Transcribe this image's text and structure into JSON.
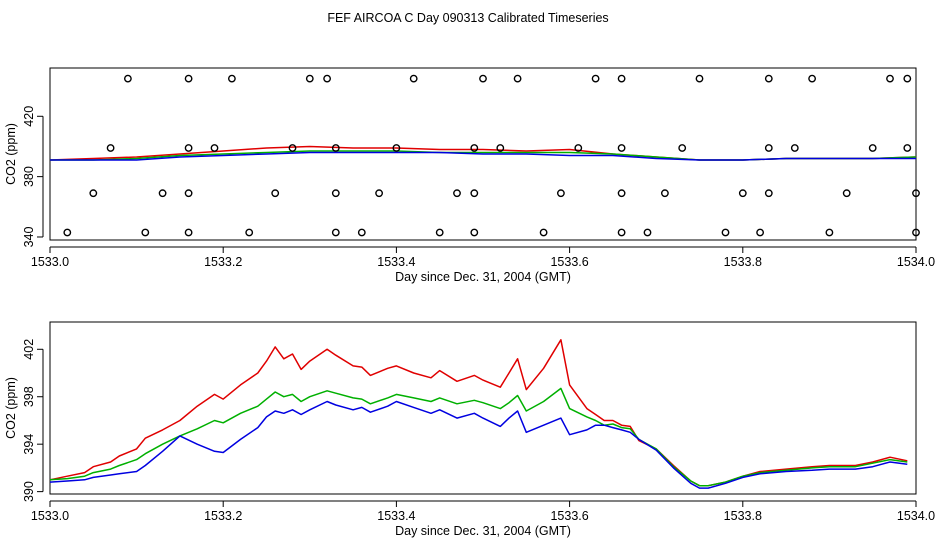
{
  "title": "FEF AIRCOA C  Day 090313  Calibrated Timeseries",
  "colors": {
    "red": "#e00000",
    "green": "#00b000",
    "blue": "#0000e0",
    "axis": "#000000"
  },
  "chart_data": [
    {
      "type": "line",
      "xlabel": "Day since Dec. 31, 2004 (GMT)",
      "ylabel": "CO2 (ppm)",
      "xlim": [
        1533.0,
        1534.0
      ],
      "ylim": [
        338,
        452
      ],
      "xticks": [
        1533.0,
        1533.2,
        1533.4,
        1533.6,
        1533.8,
        1534.0
      ],
      "xtick_labels": [
        "1533.0",
        "1533.2",
        "1533.4",
        "1533.6",
        "1533.8",
        "1534.0"
      ],
      "yticks": [
        340,
        380,
        420
      ],
      "ytick_labels": [
        "340",
        "380",
        "420"
      ],
      "series": [
        {
          "name": "red",
          "color": "#e00000",
          "x": [
            1533.0,
            1533.05,
            1533.1,
            1533.15,
            1533.2,
            1533.25,
            1533.3,
            1533.35,
            1533.4,
            1533.45,
            1533.5,
            1533.55,
            1533.6,
            1533.65,
            1533.7,
            1533.75,
            1533.8,
            1533.85,
            1533.9,
            1533.95,
            1534.0
          ],
          "y": [
            391,
            392,
            393,
            395,
            397,
            399,
            400,
            399,
            399,
            398,
            398,
            397,
            398,
            395,
            393,
            391,
            391,
            392,
            392,
            392,
            393
          ]
        },
        {
          "name": "green",
          "color": "#00b000",
          "x": [
            1533.0,
            1533.05,
            1533.1,
            1533.15,
            1533.2,
            1533.25,
            1533.3,
            1533.35,
            1533.4,
            1533.45,
            1533.5,
            1533.55,
            1533.6,
            1533.65,
            1533.7,
            1533.75,
            1533.8,
            1533.85,
            1533.9,
            1533.95,
            1534.0
          ],
          "y": [
            391,
            391,
            392,
            394,
            395,
            396,
            397,
            397,
            397,
            396,
            396,
            396,
            396,
            395,
            393,
            391,
            391,
            392,
            392,
            392,
            393
          ]
        },
        {
          "name": "blue",
          "color": "#0000e0",
          "x": [
            1533.0,
            1533.05,
            1533.1,
            1533.15,
            1533.2,
            1533.25,
            1533.3,
            1533.35,
            1533.4,
            1533.45,
            1533.5,
            1533.55,
            1533.6,
            1533.65,
            1533.7,
            1533.75,
            1533.8,
            1533.85,
            1533.9,
            1533.95,
            1534.0
          ],
          "y": [
            391,
            391,
            391,
            393,
            394,
            395,
            396,
            396,
            396,
            396,
            395,
            395,
            394,
            394,
            392,
            391,
            391,
            392,
            392,
            392,
            392
          ]
        }
      ],
      "markers": {
        "style": "open-circle",
        "x": [
          1533.09,
          1533.16,
          1533.21,
          1533.3,
          1533.32,
          1533.42,
          1533.5,
          1533.54,
          1533.63,
          1533.66,
          1533.75,
          1533.83,
          1533.88,
          1533.97,
          1533.99,
          1533.07,
          1533.16,
          1533.19,
          1533.28,
          1533.33,
          1533.4,
          1533.49,
          1533.52,
          1533.61,
          1533.66,
          1533.73,
          1533.83,
          1533.86,
          1533.95,
          1533.99,
          1533.05,
          1533.13,
          1533.16,
          1533.26,
          1533.33,
          1533.38,
          1533.47,
          1533.49,
          1533.59,
          1533.66,
          1533.71,
          1533.8,
          1533.83,
          1533.92,
          1534.0,
          1533.02,
          1533.11,
          1533.16,
          1533.23,
          1533.33,
          1533.36,
          1533.45,
          1533.49,
          1533.57,
          1533.66,
          1533.69,
          1533.78,
          1533.82,
          1533.9,
          1534.0
        ],
        "y": [
          445,
          445,
          445,
          445,
          445,
          445,
          445,
          445,
          445,
          445,
          445,
          445,
          445,
          445,
          445,
          399,
          399,
          399,
          399,
          399,
          399,
          399,
          399,
          399,
          399,
          399,
          399,
          399,
          399,
          399,
          369,
          369,
          369,
          369,
          369,
          369,
          369,
          369,
          369,
          369,
          369,
          369,
          369,
          369,
          369,
          343,
          343,
          343,
          343,
          343,
          343,
          343,
          343,
          343,
          343,
          343,
          343,
          343,
          343,
          343
        ]
      }
    },
    {
      "type": "line",
      "xlabel": "Day since Dec. 31, 2004 (GMT)",
      "ylabel": "CO2 (ppm)",
      "xlim": [
        1533.0,
        1534.0
      ],
      "ylim": [
        389.8,
        404.3
      ],
      "xticks": [
        1533.0,
        1533.2,
        1533.4,
        1533.6,
        1533.8,
        1534.0
      ],
      "xtick_labels": [
        "1533.0",
        "1533.2",
        "1533.4",
        "1533.6",
        "1533.8",
        "1534.0"
      ],
      "yticks": [
        390,
        394,
        398,
        402
      ],
      "ytick_labels": [
        "390",
        "394",
        "398",
        "402"
      ],
      "series": [
        {
          "name": "red",
          "color": "#e00000",
          "x": [
            1533.0,
            1533.02,
            1533.04,
            1533.05,
            1533.07,
            1533.08,
            1533.1,
            1533.11,
            1533.13,
            1533.15,
            1533.17,
            1533.19,
            1533.2,
            1533.22,
            1533.24,
            1533.25,
            1533.26,
            1533.27,
            1533.28,
            1533.29,
            1533.3,
            1533.32,
            1533.33,
            1533.35,
            1533.36,
            1533.37,
            1533.39,
            1533.4,
            1533.42,
            1533.44,
            1533.45,
            1533.47,
            1533.49,
            1533.5,
            1533.52,
            1533.53,
            1533.54,
            1533.55,
            1533.57,
            1533.59,
            1533.6,
            1533.62,
            1533.63,
            1533.64,
            1533.65,
            1533.66,
            1533.67,
            1533.68,
            1533.7,
            1533.72,
            1533.74,
            1533.75,
            1533.76,
            1533.78,
            1533.8,
            1533.82,
            1533.85,
            1533.88,
            1533.9,
            1533.93,
            1533.95,
            1533.97,
            1533.99
          ],
          "y": [
            391.0,
            391.3,
            391.6,
            392.1,
            392.5,
            393.0,
            393.6,
            394.5,
            395.2,
            396.0,
            397.2,
            398.2,
            397.8,
            399.0,
            400.0,
            401.0,
            402.2,
            401.2,
            401.6,
            400.3,
            401.0,
            402.0,
            401.5,
            400.6,
            400.5,
            399.8,
            400.4,
            400.6,
            400.0,
            399.6,
            400.2,
            399.3,
            399.8,
            399.4,
            398.8,
            400.0,
            401.2,
            398.6,
            400.4,
            402.8,
            399.0,
            397.0,
            396.5,
            396.0,
            396.0,
            395.6,
            395.5,
            394.3,
            393.6,
            392.2,
            390.9,
            390.5,
            390.5,
            390.8,
            391.3,
            391.7,
            391.9,
            392.1,
            392.2,
            392.2,
            392.5,
            392.9,
            392.6
          ]
        },
        {
          "name": "green",
          "color": "#00b000",
          "x": [
            1533.0,
            1533.02,
            1533.04,
            1533.05,
            1533.07,
            1533.08,
            1533.1,
            1533.11,
            1533.13,
            1533.15,
            1533.17,
            1533.19,
            1533.2,
            1533.22,
            1533.24,
            1533.25,
            1533.26,
            1533.27,
            1533.28,
            1533.29,
            1533.3,
            1533.32,
            1533.33,
            1533.35,
            1533.36,
            1533.37,
            1533.39,
            1533.4,
            1533.42,
            1533.44,
            1533.45,
            1533.47,
            1533.49,
            1533.5,
            1533.52,
            1533.53,
            1533.54,
            1533.55,
            1533.57,
            1533.59,
            1533.6,
            1533.62,
            1533.63,
            1533.64,
            1533.65,
            1533.66,
            1533.67,
            1533.68,
            1533.7,
            1533.72,
            1533.74,
            1533.75,
            1533.76,
            1533.78,
            1533.8,
            1533.82,
            1533.85,
            1533.88,
            1533.9,
            1533.93,
            1533.95,
            1533.97,
            1533.99
          ],
          "y": [
            391.0,
            391.1,
            391.3,
            391.6,
            391.9,
            392.2,
            392.7,
            393.2,
            394.0,
            394.7,
            395.3,
            396.0,
            395.8,
            396.6,
            397.2,
            397.8,
            398.4,
            398.0,
            398.2,
            397.6,
            398.0,
            398.5,
            398.3,
            397.9,
            397.8,
            397.4,
            397.9,
            398.2,
            397.9,
            397.6,
            397.9,
            397.4,
            397.7,
            397.5,
            397.0,
            397.5,
            398.1,
            396.8,
            397.6,
            398.7,
            397.0,
            396.3,
            396.0,
            395.6,
            395.7,
            395.4,
            395.3,
            394.4,
            393.6,
            392.1,
            390.9,
            390.5,
            390.5,
            390.8,
            391.3,
            391.6,
            391.8,
            392.0,
            392.1,
            392.1,
            392.4,
            392.7,
            392.5
          ]
        },
        {
          "name": "blue",
          "color": "#0000e0",
          "x": [
            1533.0,
            1533.02,
            1533.04,
            1533.05,
            1533.07,
            1533.08,
            1533.1,
            1533.11,
            1533.13,
            1533.15,
            1533.17,
            1533.19,
            1533.2,
            1533.22,
            1533.24,
            1533.25,
            1533.26,
            1533.27,
            1533.28,
            1533.29,
            1533.3,
            1533.32,
            1533.33,
            1533.35,
            1533.36,
            1533.37,
            1533.39,
            1533.4,
            1533.42,
            1533.44,
            1533.45,
            1533.47,
            1533.49,
            1533.5,
            1533.52,
            1533.53,
            1533.54,
            1533.55,
            1533.57,
            1533.59,
            1533.6,
            1533.62,
            1533.63,
            1533.64,
            1533.65,
            1533.66,
            1533.67,
            1533.68,
            1533.7,
            1533.72,
            1533.74,
            1533.75,
            1533.76,
            1533.78,
            1533.8,
            1533.82,
            1533.85,
            1533.88,
            1533.9,
            1533.93,
            1533.95,
            1533.97,
            1533.99
          ],
          "y": [
            390.8,
            390.9,
            391.0,
            391.2,
            391.4,
            391.5,
            391.7,
            392.2,
            393.4,
            394.7,
            394.0,
            393.4,
            393.3,
            394.4,
            395.4,
            396.3,
            396.8,
            396.6,
            396.9,
            396.5,
            396.9,
            397.6,
            397.3,
            396.9,
            397.1,
            396.7,
            397.2,
            397.6,
            397.1,
            396.6,
            396.9,
            396.2,
            396.6,
            396.2,
            395.5,
            396.2,
            396.8,
            395.0,
            395.6,
            396.2,
            394.8,
            395.2,
            395.6,
            395.6,
            395.4,
            395.2,
            395.0,
            394.4,
            393.5,
            392.0,
            390.7,
            390.3,
            390.3,
            390.7,
            391.2,
            391.5,
            391.7,
            391.8,
            391.9,
            391.9,
            392.1,
            392.5,
            392.3
          ]
        }
      ]
    }
  ]
}
